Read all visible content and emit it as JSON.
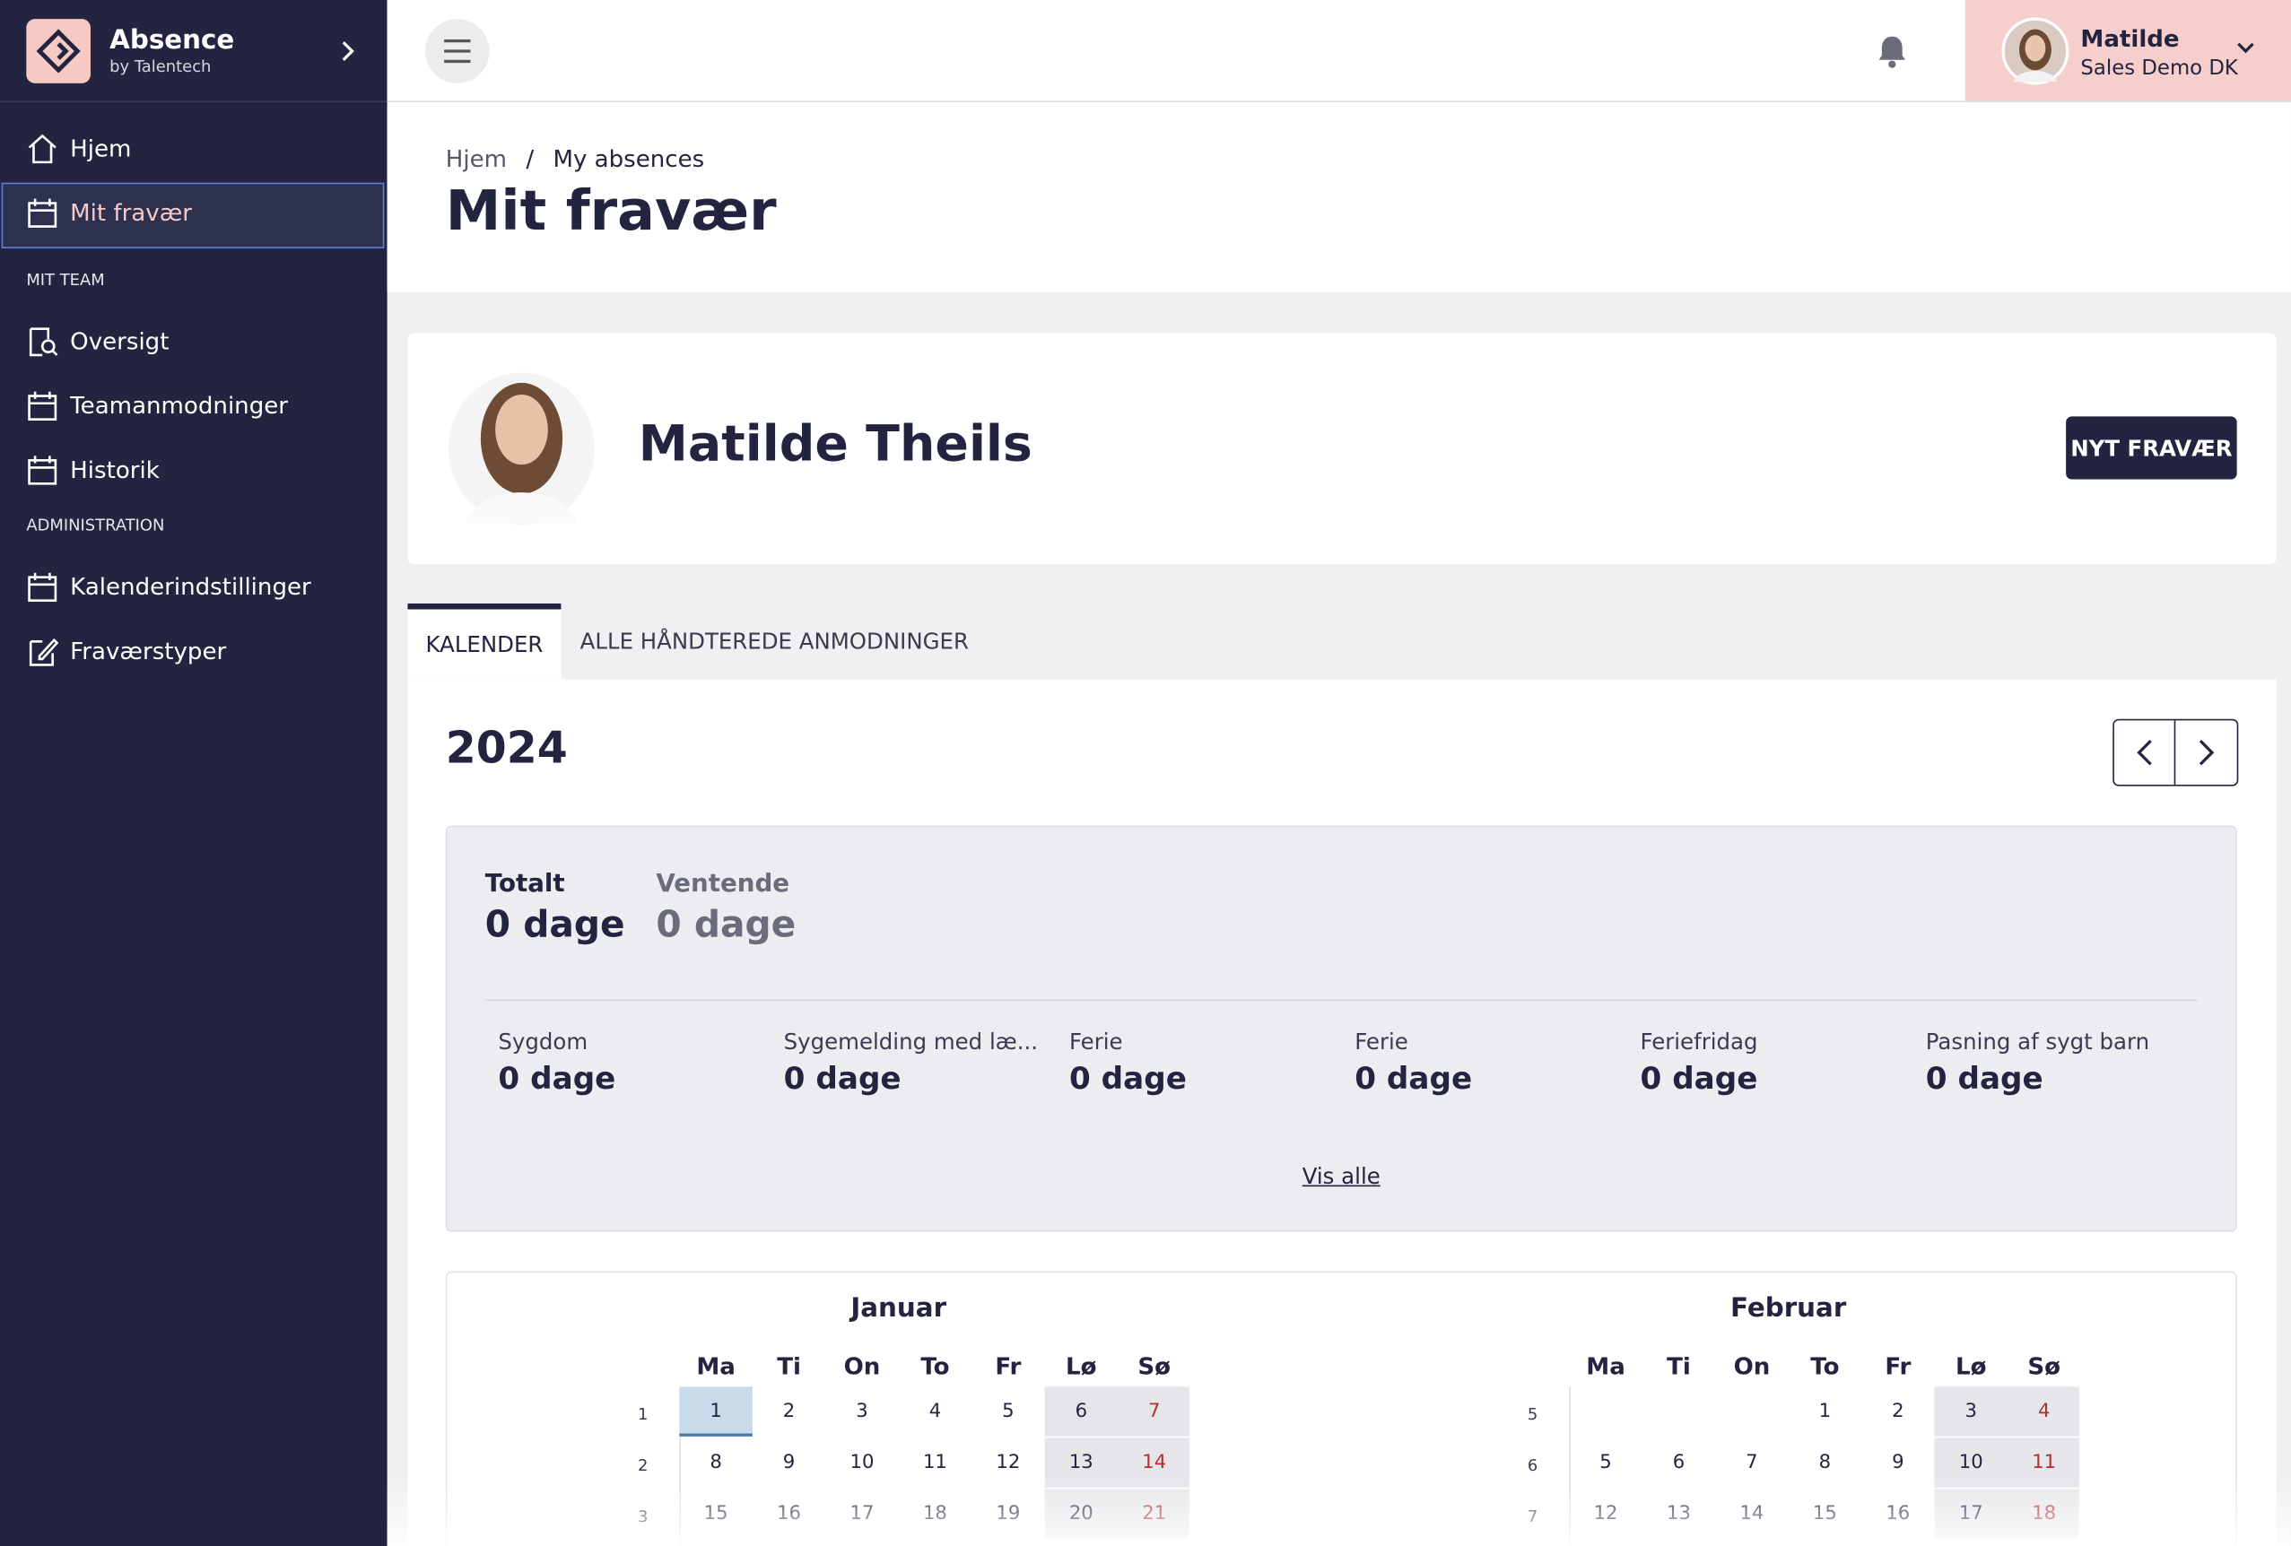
{
  "sidebar": {
    "brand": "Absence",
    "brand_sub": "by Talentech",
    "main_nav": [
      "Hjem",
      "Mit fravær"
    ],
    "sections": [
      {
        "title": "MIT TEAM",
        "items": [
          "Oversigt",
          "Teamanmodninger",
          "Historik"
        ]
      },
      {
        "title": "ADMINISTRATION",
        "items": [
          "Kalenderindstillinger",
          "Fraværstyper"
        ]
      }
    ]
  },
  "topbar": {
    "user_name": "Matilde",
    "user_org": "Sales Demo DK"
  },
  "breadcrumb": {
    "items": [
      "Hjem",
      "My absences"
    ],
    "separator": "/"
  },
  "page_title": "Mit fravær",
  "profile": {
    "name": "Matilde Theils",
    "button": "NYT FRAVÆR"
  },
  "tabs": [
    "KALENDER",
    "ALLE HÅNDTEREDE ANMODNINGER"
  ],
  "year": 2024,
  "summary": {
    "totals": [
      {
        "label": "Totalt",
        "value": "0 dage"
      },
      {
        "label": "Ventende",
        "value": "0 dage"
      }
    ],
    "types": [
      {
        "label": "Sygdom",
        "value": "0 dage"
      },
      {
        "label": "Sygemelding med læ...",
        "value": "0 dage"
      },
      {
        "label": "Ferie",
        "value": "0 dage"
      },
      {
        "label": "Ferie",
        "value": "0 dage"
      },
      {
        "label": "Feriefridag",
        "value": "0 dage"
      },
      {
        "label": "Pasning af sygt barn",
        "value": "0 dage"
      }
    ],
    "link": "Vis alle"
  },
  "calendar": {
    "weekdays": [
      "Ma",
      "Ti",
      "On",
      "To",
      "Fr",
      "Lø",
      "Sø"
    ],
    "months": [
      {
        "name": "Januar",
        "weeks": [
          {
            "week": 1,
            "days": [
              1,
              2,
              3,
              4,
              5,
              6,
              7
            ]
          },
          {
            "week": 2,
            "days": [
              8,
              9,
              10,
              11,
              12,
              13,
              14
            ]
          },
          {
            "week": 3,
            "days": [
              15,
              16,
              17,
              18,
              19,
              20,
              21
            ]
          }
        ]
      },
      {
        "name": "Februar",
        "weeks": [
          {
            "week": 5,
            "days": [
              null,
              null,
              null,
              1,
              2,
              3,
              4
            ]
          },
          {
            "week": 6,
            "days": [
              5,
              6,
              7,
              8,
              9,
              10,
              11
            ]
          },
          {
            "week": 7,
            "days": [
              12,
              13,
              14,
              15,
              16,
              17,
              18
            ]
          }
        ]
      }
    ]
  }
}
